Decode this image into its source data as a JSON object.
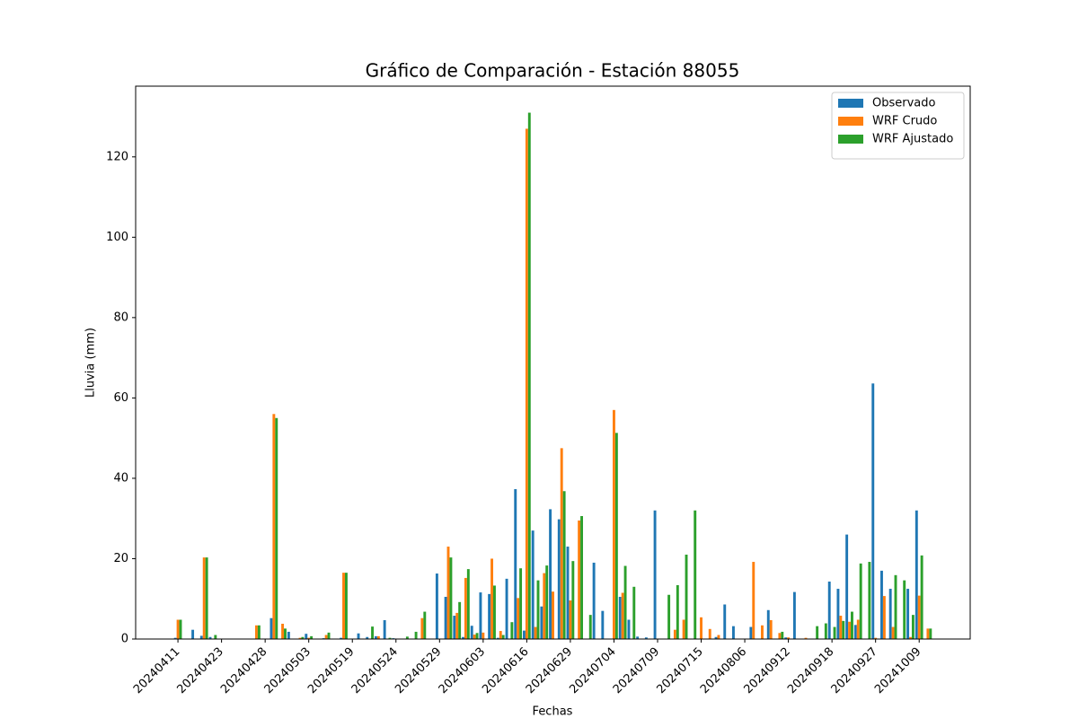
{
  "chart_data": {
    "type": "bar",
    "title": "Gráfico de Comparación - Estación 88055",
    "x_label": "Fechas",
    "y_label": "Lluvia (mm)",
    "categories": [
      "20240411",
      null,
      null,
      null,
      null,
      "20240423",
      null,
      null,
      null,
      null,
      "20240428",
      null,
      null,
      null,
      null,
      "20240503",
      null,
      null,
      null,
      null,
      "20240519",
      null,
      null,
      null,
      null,
      "20240524",
      null,
      null,
      null,
      null,
      "20240529",
      null,
      null,
      null,
      null,
      "20240603",
      null,
      null,
      null,
      null,
      "20240616",
      null,
      null,
      null,
      null,
      "20240629",
      null,
      null,
      null,
      null,
      "20240704",
      null,
      null,
      null,
      null,
      "20240709",
      null,
      null,
      null,
      null,
      "20240715",
      null,
      null,
      null,
      null,
      "20240806",
      null,
      null,
      null,
      null,
      "20240912",
      null,
      null,
      null,
      null,
      "20240918",
      null,
      null,
      null,
      null,
      "20240927",
      null,
      null,
      null,
      null,
      "20241009",
      null
    ],
    "series": [
      {
        "name": "Observado",
        "color": "#1f77b4",
        "values": [
          0.3,
          0,
          2.3,
          0.8,
          0.5,
          0,
          0,
          0,
          0,
          0,
          0,
          5.2,
          0,
          1.8,
          0,
          1.3,
          0,
          0.2,
          0,
          0.3,
          0,
          1.4,
          0.5,
          0.7,
          4.7,
          0.2,
          0,
          0,
          0,
          0,
          16.3,
          10.5,
          5.8,
          0.5,
          3.3,
          11.6,
          11.2,
          0.3,
          15,
          37.3,
          2.1,
          27,
          8.1,
          32.3,
          29.8,
          23,
          0,
          0,
          19,
          7,
          0,
          10.5,
          4.8,
          0.6,
          0.4,
          32,
          0,
          0,
          0,
          0,
          0,
          0,
          0.5,
          8.6,
          3.2,
          0,
          3,
          0,
          7.2,
          0,
          0.4,
          11.7,
          0,
          0,
          0,
          14.3,
          12.5,
          26,
          3.5,
          0,
          63.6,
          17,
          12.5,
          0,
          12.5,
          32,
          0
        ]
      },
      {
        "name": "WRF Crudo",
        "color": "#ff7f0e",
        "values": [
          4.8,
          0,
          0,
          20.3,
          0,
          0,
          0,
          0,
          0,
          3.4,
          0,
          56,
          3.8,
          0,
          0.3,
          0.3,
          0,
          1,
          0,
          16.5,
          0,
          0,
          0,
          0.7,
          0,
          0,
          0,
          0,
          5.2,
          0,
          0,
          23,
          6.5,
          15.2,
          1.1,
          1.6,
          20,
          2,
          0,
          10.2,
          127,
          3,
          16.4,
          11.8,
          47.5,
          9.6,
          29.5,
          0,
          0,
          0,
          57,
          11.5,
          0,
          0,
          0,
          0,
          0,
          2.3,
          4.8,
          0,
          5.4,
          2.5,
          1,
          0,
          0,
          0,
          19.2,
          3.4,
          4.7,
          1.5,
          0.4,
          0,
          0.3,
          0,
          0,
          0,
          5.8,
          4.3,
          4.8,
          0,
          0.3,
          10.7,
          3,
          0,
          0.5,
          10.8,
          2.6
        ]
      },
      {
        "name": "WRF Ajustado",
        "color": "#2ca02c",
        "values": [
          4.8,
          0,
          0,
          20.3,
          1,
          0,
          0,
          0,
          0,
          3.4,
          0,
          55,
          2.6,
          0,
          0.5,
          0.7,
          0,
          1.6,
          0,
          16.5,
          0,
          0,
          3.1,
          0,
          0.3,
          0,
          0.6,
          1.8,
          6.8,
          0,
          0,
          20.3,
          9.2,
          17.4,
          1.5,
          0,
          13.3,
          1,
          4.2,
          17.6,
          131,
          14.6,
          18.3,
          0,
          36.8,
          19.4,
          30.6,
          6,
          0,
          0,
          51.3,
          18.2,
          13,
          0,
          0,
          0,
          11,
          13.4,
          21,
          32,
          0,
          0,
          0,
          0,
          0,
          0,
          0,
          0,
          0,
          1.8,
          0,
          0,
          0,
          3.2,
          3.9,
          3,
          4.5,
          6.8,
          18.8,
          19.2,
          0,
          0,
          15.9,
          14.6,
          6,
          20.8,
          2.6
        ]
      }
    ],
    "ylim": [
      0,
      137.6
    ],
    "yticks": [
      0,
      20,
      40,
      60,
      80,
      100,
      120
    ],
    "legend": "upper right"
  }
}
